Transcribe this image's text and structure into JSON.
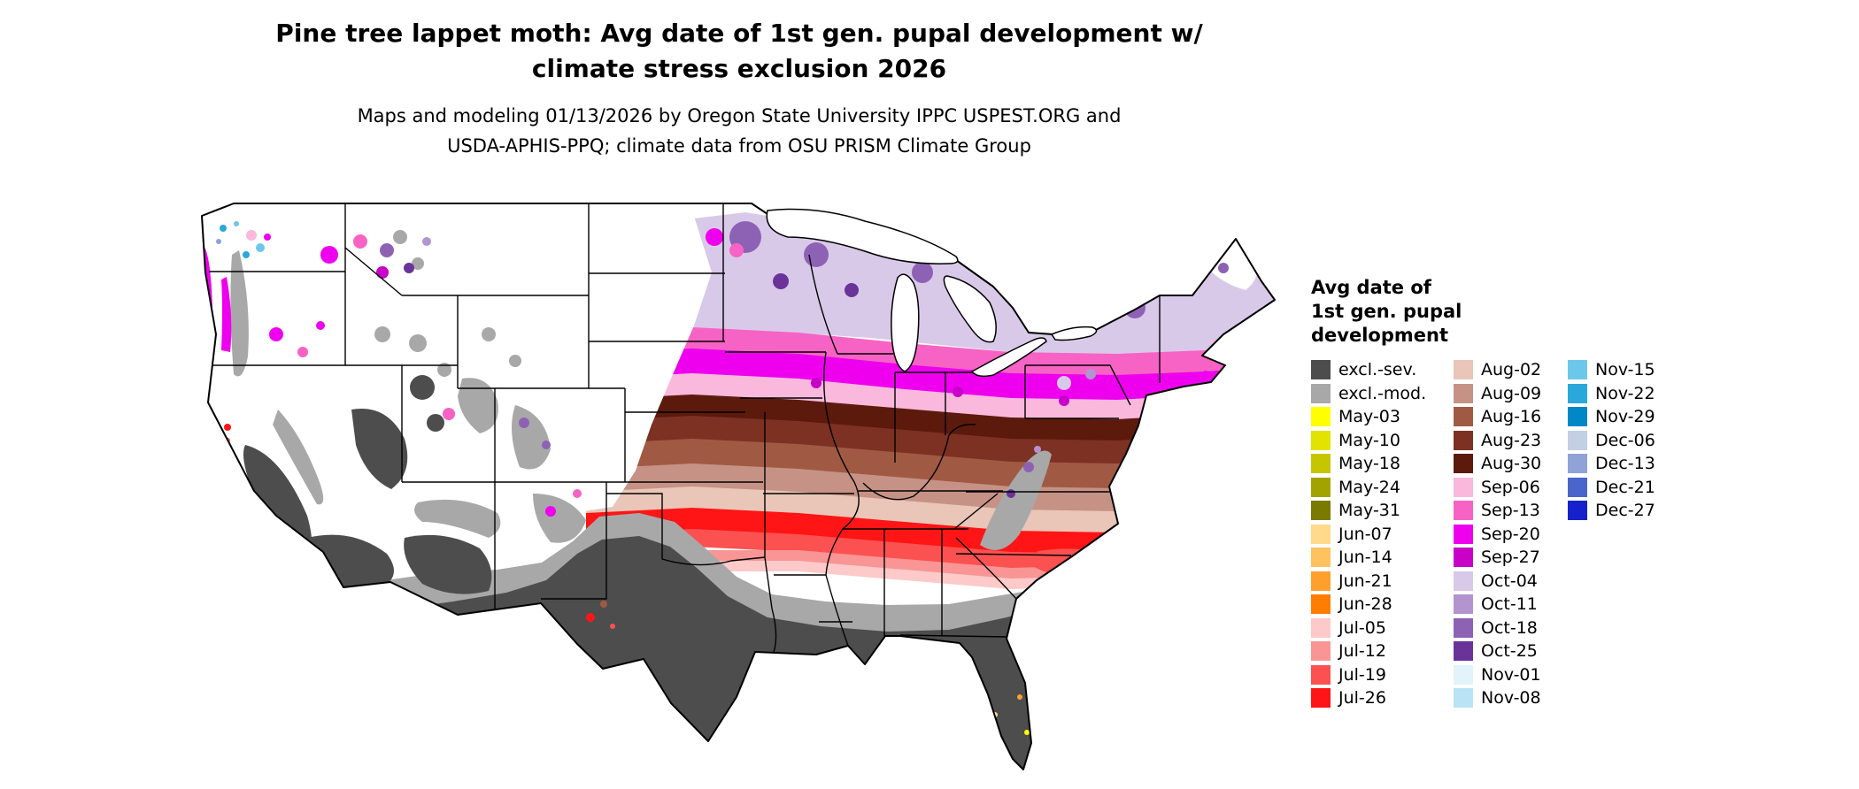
{
  "header": {
    "title": "Pine tree lappet moth: Avg date of 1st gen. pupal development w/\nclimate stress exclusion 2026",
    "subtitle": "Maps and modeling 01/13/2026 by Oregon State University IPPC USPEST.ORG and\nUSDA-APHIS-PPQ; climate data from OSU PRISM Climate Group"
  },
  "legend": {
    "title": "Avg date of\n1st gen. pupal\ndevelopment",
    "columns": [
      {
        "entries": [
          {
            "label": "excl.-sev.",
            "color": "#4d4d4d"
          },
          {
            "label": "excl.-mod.",
            "color": "#a8a8a8"
          },
          {
            "label": "May-03",
            "color": "#ffff00"
          },
          {
            "label": "May-10",
            "color": "#e3e300"
          },
          {
            "label": "May-18",
            "color": "#c6c600"
          },
          {
            "label": "May-24",
            "color": "#a3a300"
          },
          {
            "label": "May-31",
            "color": "#7a7a00"
          },
          {
            "label": "Jun-07",
            "color": "#ffd98c"
          },
          {
            "label": "Jun-14",
            "color": "#ffc25e"
          },
          {
            "label": "Jun-21",
            "color": "#ffa02e"
          },
          {
            "label": "Jun-28",
            "color": "#ff7d00"
          },
          {
            "label": "Jul-05",
            "color": "#fdc9c9"
          },
          {
            "label": "Jul-12",
            "color": "#f99595"
          },
          {
            "label": "Jul-19",
            "color": "#fb5151"
          },
          {
            "label": "Jul-26",
            "color": "#ff1515"
          }
        ]
      },
      {
        "entries": [
          {
            "label": "Aug-02",
            "color": "#e9c6b8"
          },
          {
            "label": "Aug-09",
            "color": "#c69285"
          },
          {
            "label": "Aug-16",
            "color": "#a05a43"
          },
          {
            "label": "Aug-23",
            "color": "#7d3122"
          },
          {
            "label": "Aug-30",
            "color": "#5c1a0d"
          },
          {
            "label": "Sep-06",
            "color": "#fab8dd"
          },
          {
            "label": "Sep-13",
            "color": "#f763c4"
          },
          {
            "label": "Sep-20",
            "color": "#ee00ee"
          },
          {
            "label": "Sep-27",
            "color": "#c800c8"
          },
          {
            "label": "Oct-04",
            "color": "#d9c9e9"
          },
          {
            "label": "Oct-11",
            "color": "#b394cf"
          },
          {
            "label": "Oct-18",
            "color": "#8d62b4"
          },
          {
            "label": "Oct-25",
            "color": "#6a3399"
          },
          {
            "label": "Nov-01",
            "color": "#e3f3fb"
          },
          {
            "label": "Nov-08",
            "color": "#b8e4f5"
          }
        ]
      },
      {
        "entries": [
          {
            "label": "Nov-15",
            "color": "#6cc8ea"
          },
          {
            "label": "Nov-22",
            "color": "#2aa8dc"
          },
          {
            "label": "Nov-29",
            "color": "#0087c8"
          },
          {
            "label": "Dec-06",
            "color": "#c3cfe3"
          },
          {
            "label": "Dec-13",
            "color": "#8fa3d8"
          },
          {
            "label": "Dec-21",
            "color": "#4a66cc"
          },
          {
            "label": "Dec-27",
            "color": "#1522cc"
          }
        ]
      }
    ]
  }
}
